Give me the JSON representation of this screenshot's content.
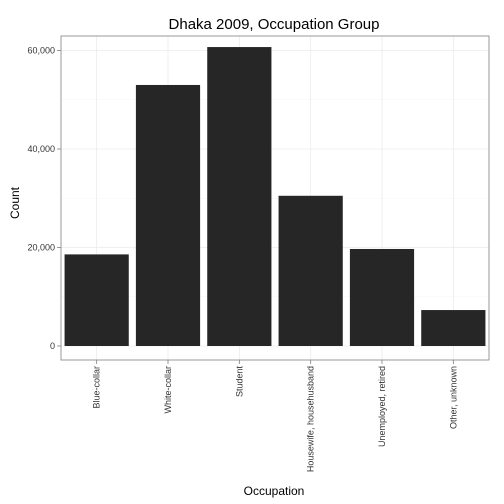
{
  "chart_data": {
    "type": "bar",
    "title": "Dhaka 2009, Occupation Group",
    "xlabel": "Occupation",
    "ylabel": "Count",
    "categories": [
      "Blue-collar",
      "White-collar",
      "Student",
      "Housewife, househusband",
      "Unemployed, retired",
      "Other, unknown"
    ],
    "values": [
      18600,
      53000,
      60700,
      30500,
      19700,
      7300
    ],
    "ylim": [
      0,
      63000
    ],
    "yticks": [
      0,
      20000,
      40000,
      60000
    ],
    "ytick_labels": [
      "0",
      "20,000",
      "40,000",
      "60,000"
    ],
    "bar_color": "#262626",
    "grid": true,
    "legend": "none"
  }
}
